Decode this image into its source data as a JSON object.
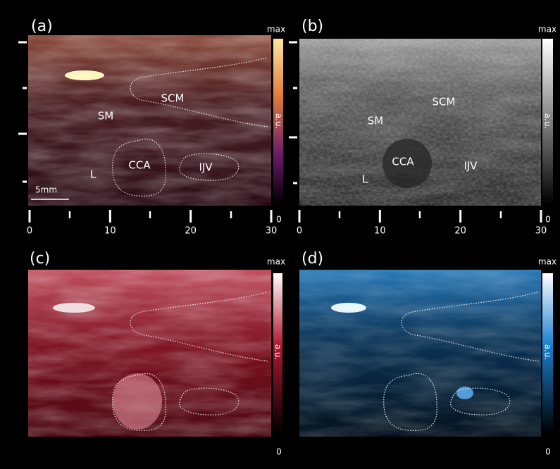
{
  "panels": [
    {
      "label": "(a)",
      "colorbar": {
        "max": "max",
        "unit": "a.u.",
        "min": "0"
      },
      "annotations": [
        "SCM",
        "SM",
        "CCA",
        "IJV",
        "L"
      ],
      "scale_bar": "5mm",
      "x_ticks": [
        0,
        10,
        20,
        30
      ]
    },
    {
      "label": "(b)",
      "colorbar": {
        "max": "max",
        "unit": "a.u.",
        "min": "0"
      },
      "annotations": [
        "SCM",
        "SM",
        "CCA",
        "IJV",
        "L"
      ],
      "x_ticks": [
        0,
        10,
        20,
        30
      ]
    },
    {
      "label": "(c)",
      "colorbar": {
        "max": "max",
        "unit": "a.u.",
        "min": "0"
      }
    },
    {
      "label": "(d)",
      "colorbar": {
        "max": "max",
        "unit": "a.u.",
        "min": "0"
      }
    }
  ]
}
